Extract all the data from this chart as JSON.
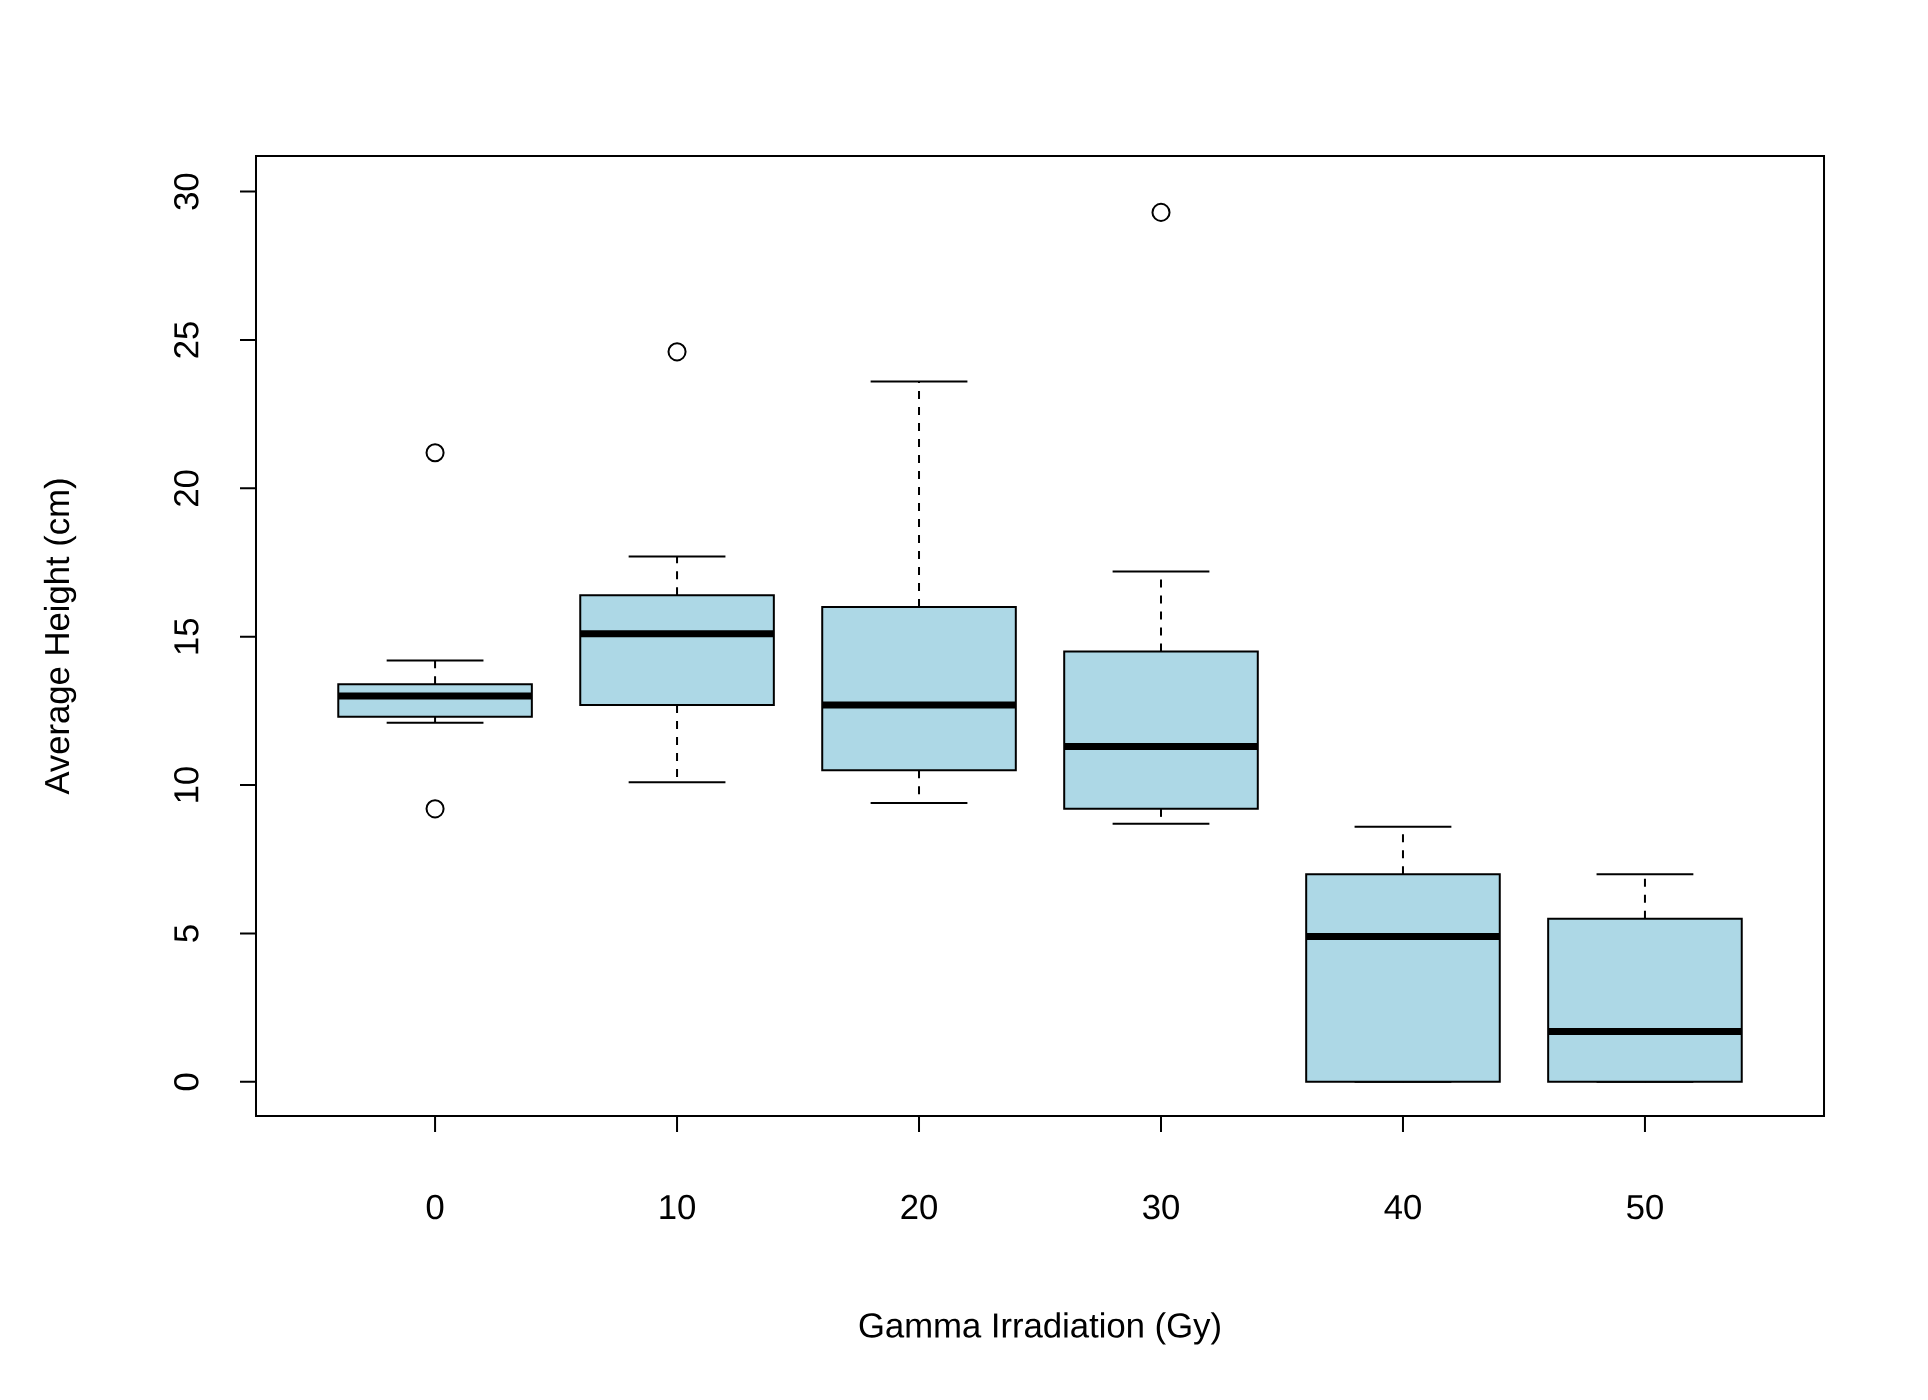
{
  "chart_data": {
    "type": "box",
    "xlabel": "Gamma Irradiation (Gy)",
    "ylabel": "Average Height (cm)",
    "categories": [
      "0",
      "10",
      "20",
      "30",
      "40",
      "50"
    ],
    "color": "#add8e6",
    "boxes": [
      {
        "low": 12.1,
        "q1": 12.3,
        "median": 13.0,
        "q3": 13.4,
        "high": 14.2,
        "outliers": [
          21.2,
          9.2
        ]
      },
      {
        "low": 10.1,
        "q1": 12.7,
        "median": 15.1,
        "q3": 16.4,
        "high": 17.7,
        "outliers": [
          24.6
        ]
      },
      {
        "low": 9.4,
        "q1": 10.5,
        "median": 12.7,
        "q3": 16.0,
        "high": 23.6
      },
      {
        "low": 8.7,
        "q1": 9.2,
        "median": 11.3,
        "q3": 14.5,
        "high": 17.2,
        "outliers": [
          29.3
        ]
      },
      {
        "low": 0,
        "q1": 0,
        "median": 4.9,
        "q3": 7.0,
        "high": 8.6
      },
      {
        "low": 0,
        "q1": 0,
        "median": 1.7,
        "q3": 5.5,
        "high": 7.0
      }
    ],
    "ylim": [
      -1.15,
      31.2
    ],
    "yticks": [
      0,
      5,
      10,
      15,
      20,
      25,
      30
    ],
    "grid": false
  }
}
